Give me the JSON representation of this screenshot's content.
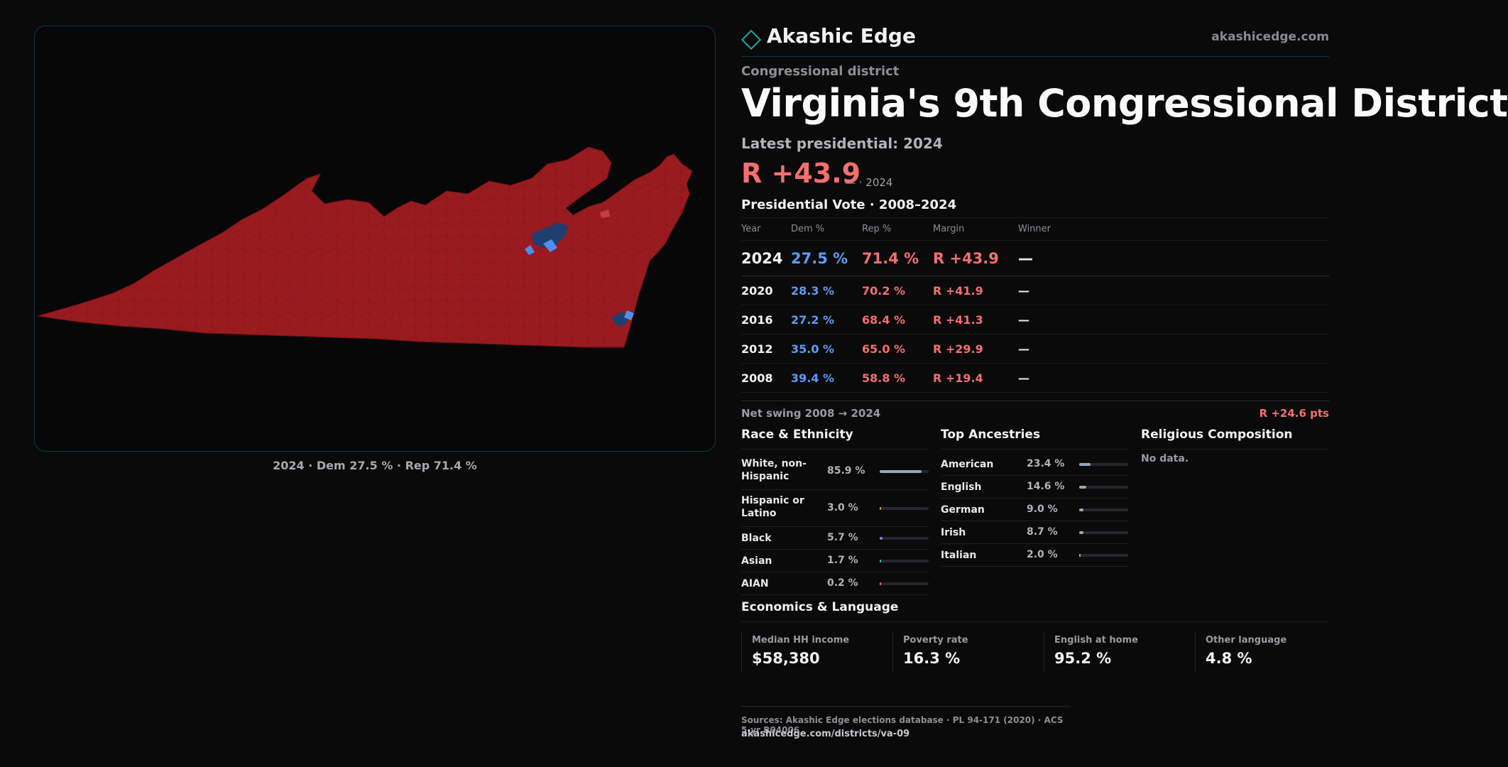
{
  "map": {
    "caption": "2024 · Dem 27.5 % · Rep 71.4 %",
    "colors": {
      "rep": "#9a1b1f",
      "dem": "#1f3f70",
      "dem_light": "#4d8ff0"
    }
  },
  "header": {
    "brand": "Akashic Edge",
    "site": "akashicedge.com",
    "logo_icon": "diamond-icon"
  },
  "district": {
    "kicker": "Congressional district",
    "title": "Virginia's 9th Congressional District",
    "latest_label": "Latest presidential: 2024",
    "margin": "R +43.9",
    "margin_sub": "— · 2024"
  },
  "presidential": {
    "title": "Presidential Vote · 2008–2024",
    "headers": [
      "Year",
      "Dem %",
      "Rep %",
      "Margin",
      "Winner"
    ],
    "rows": [
      {
        "year": "2024",
        "dem": "27.5 %",
        "rep": "71.4 %",
        "margin": "R +43.9",
        "winner": "—"
      },
      {
        "year": "2020",
        "dem": "28.3 %",
        "rep": "70.2 %",
        "margin": "R +41.9",
        "winner": "—"
      },
      {
        "year": "2016",
        "dem": "27.2 %",
        "rep": "68.4 %",
        "margin": "R +41.3",
        "winner": "—"
      },
      {
        "year": "2012",
        "dem": "35.0 %",
        "rep": "65.0 %",
        "margin": "R +29.9",
        "winner": "—"
      },
      {
        "year": "2008",
        "dem": "39.4 %",
        "rep": "58.8 %",
        "margin": "R +19.4",
        "winner": "—"
      }
    ],
    "swing_label": "Net swing 2008 → 2024",
    "swing_value": "R +24.6 pts"
  },
  "race": {
    "title": "Race & Ethnicity",
    "rows": [
      {
        "label": "White, non-Hispanic",
        "pct": "85.9 %",
        "value": 85.9,
        "color": "#9aa6b8"
      },
      {
        "label": "Hispanic or Latino",
        "pct": "3.0 %",
        "value": 3.0,
        "color": "#e0a030"
      },
      {
        "label": "Black",
        "pct": "5.7 %",
        "value": 5.7,
        "color": "#8a7ae6"
      },
      {
        "label": "Asian",
        "pct": "1.7 %",
        "value": 1.7,
        "color": "#2cc7a0"
      },
      {
        "label": "AIAN",
        "pct": "0.2 %",
        "value": 0.2,
        "color": "#e06a8a"
      }
    ]
  },
  "ancestry": {
    "title": "Top Ancestries",
    "rows": [
      {
        "label": "American",
        "pct": "23.4 %",
        "value": 23.4
      },
      {
        "label": "English",
        "pct": "14.6 %",
        "value": 14.6
      },
      {
        "label": "German",
        "pct": "9.0 %",
        "value": 9.0
      },
      {
        "label": "Irish",
        "pct": "8.7 %",
        "value": 8.7
      },
      {
        "label": "Italian",
        "pct": "2.0 %",
        "value": 2.0
      }
    ],
    "color": "#9aa6b8"
  },
  "religion": {
    "title": "Religious Composition",
    "empty": "No data."
  },
  "economics": {
    "title": "Economics & Language",
    "cells": [
      {
        "label": "Median HH income",
        "value": "$58,380"
      },
      {
        "label": "Poverty rate",
        "value": "16.3 %"
      },
      {
        "label": "English at home",
        "value": "95.2 %"
      },
      {
        "label": "Other language",
        "value": "4.8 %"
      }
    ]
  },
  "footer": {
    "sources": "Sources: Akashic Edge elections database · PL 94-171 (2020) · ACS 5-yr B04006",
    "url": "akashicedge.com/districts/va-09"
  }
}
